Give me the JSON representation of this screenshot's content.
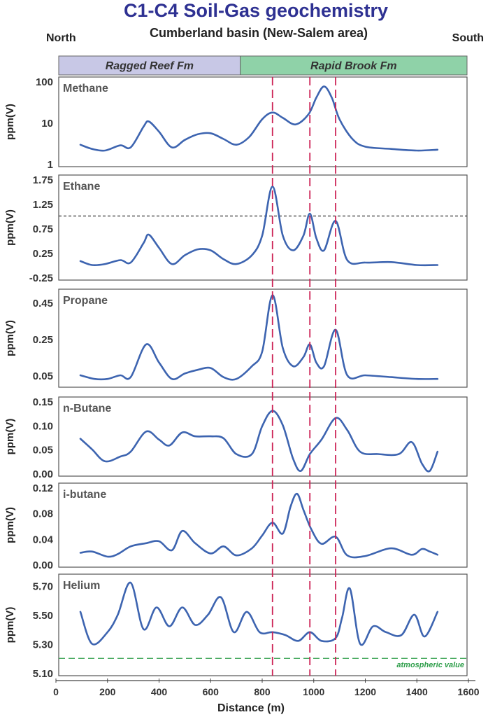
{
  "title": "C1-C4 Soil-Gas geochemistry",
  "subtitle": "Cumberland basin (New-Salem area)",
  "direction_left": "North",
  "direction_right": "South",
  "colors": {
    "title": "#2e3192",
    "line": "#3d64b0",
    "marker": "#cc2255",
    "threshold": "#333333",
    "atmospheric": "#2e9e4a",
    "ragged_reef": "#c8c8e6",
    "rapid_brook": "#8fd2a8"
  },
  "formations": [
    {
      "name": "Ragged Reef Fm",
      "x_start": 0,
      "x_end": 715,
      "color": "#c8c8e6"
    },
    {
      "name": "Rapid Brook Fm",
      "x_start": 715,
      "x_end": 1600,
      "color": "#8fd2a8"
    }
  ],
  "chart_data": {
    "type": "line",
    "xlabel": "Distance (m)",
    "xlim": [
      0,
      1600
    ],
    "xticks": [
      0,
      200,
      400,
      600,
      800,
      1000,
      1200,
      1400,
      1600
    ],
    "anomaly_markers_x": [
      840,
      985,
      1085
    ],
    "panels": [
      {
        "name": "Methane",
        "ylabel": "ppm(V)",
        "scale": "log",
        "ylim": [
          1,
          100
        ],
        "yticks": [
          1,
          10,
          100
        ],
        "ytick_labels": [
          "1",
          "10",
          "100"
        ],
        "x": [
          95,
          140,
          190,
          250,
          290,
          340,
          360,
          400,
          450,
          500,
          550,
          600,
          650,
          700,
          750,
          800,
          840,
          880,
          930,
          980,
          1010,
          1040,
          1070,
          1100,
          1150,
          1200,
          1300,
          1400,
          1480
        ],
        "values": [
          2.9,
          2.3,
          2.1,
          2.8,
          2.5,
          8.0,
          10.6,
          6.0,
          2.5,
          3.8,
          5.2,
          5.5,
          4.0,
          2.9,
          4.5,
          12.0,
          17.5,
          13.0,
          9.0,
          16.0,
          40.0,
          75.0,
          40.0,
          12.0,
          4.0,
          2.6,
          2.3,
          2.1,
          2.2
        ]
      },
      {
        "name": "Ethane",
        "ylabel": "ppm(V)",
        "scale": "linear",
        "ylim": [
          -0.25,
          1.75
        ],
        "yticks": [
          -0.25,
          0.25,
          0.75,
          1.25,
          1.75
        ],
        "ytick_labels": [
          "-0.25",
          "0.25",
          "0.75",
          "1.25",
          "1.75"
        ],
        "threshold": 1.0,
        "x": [
          95,
          140,
          190,
          250,
          290,
          340,
          360,
          400,
          450,
          500,
          550,
          600,
          650,
          700,
          760,
          800,
          840,
          880,
          920,
          960,
          985,
          1010,
          1040,
          1085,
          1130,
          1200,
          1300,
          1400,
          1480
        ],
        "values": [
          0.08,
          0.0,
          0.02,
          0.1,
          0.05,
          0.45,
          0.62,
          0.35,
          0.02,
          0.2,
          0.32,
          0.3,
          0.12,
          0.02,
          0.2,
          0.6,
          1.6,
          0.6,
          0.3,
          0.6,
          1.05,
          0.55,
          0.3,
          0.9,
          0.1,
          0.05,
          0.06,
          0.0,
          0.0
        ]
      },
      {
        "name": "Propane",
        "ylabel": "ppm(V)",
        "scale": "linear",
        "ylim": [
          0.0,
          0.5
        ],
        "yticks": [
          0.05,
          0.25,
          0.45
        ],
        "ytick_labels": [
          "0.05",
          "0.25",
          "0.45"
        ],
        "x": [
          95,
          150,
          200,
          250,
          290,
          350,
          400,
          450,
          500,
          550,
          600,
          650,
          700,
          760,
          800,
          840,
          880,
          920,
          960,
          985,
          1010,
          1040,
          1085,
          1130,
          1200,
          1300,
          1400,
          1480
        ],
        "values": [
          0.05,
          0.03,
          0.03,
          0.05,
          0.04,
          0.22,
          0.12,
          0.03,
          0.06,
          0.08,
          0.09,
          0.04,
          0.03,
          0.1,
          0.18,
          0.49,
          0.2,
          0.1,
          0.15,
          0.22,
          0.12,
          0.1,
          0.3,
          0.05,
          0.05,
          0.04,
          0.03,
          0.03
        ]
      },
      {
        "name": "n-Butane",
        "ylabel": "ppm(V)",
        "scale": "linear",
        "ylim": [
          0.0,
          0.15
        ],
        "yticks": [
          0.0,
          0.05,
          0.1,
          0.15
        ],
        "ytick_labels": [
          "0.00",
          "0.05",
          "0.10",
          "0.15"
        ],
        "x": [
          95,
          140,
          190,
          250,
          290,
          350,
          400,
          440,
          490,
          540,
          600,
          650,
          700,
          760,
          800,
          840,
          880,
          920,
          950,
          985,
          1030,
          1085,
          1130,
          1180,
          1250,
          1330,
          1380,
          1420,
          1450,
          1480
        ],
        "values": [
          0.072,
          0.05,
          0.025,
          0.035,
          0.045,
          0.087,
          0.07,
          0.058,
          0.085,
          0.077,
          0.077,
          0.073,
          0.04,
          0.04,
          0.098,
          0.13,
          0.1,
          0.03,
          0.005,
          0.04,
          0.07,
          0.115,
          0.09,
          0.045,
          0.04,
          0.04,
          0.065,
          0.02,
          0.005,
          0.045
        ]
      },
      {
        "name": "i-butane",
        "ylabel": "ppm(V)",
        "scale": "linear",
        "ylim": [
          0.0,
          0.12
        ],
        "yticks": [
          0.0,
          0.04,
          0.08,
          0.12
        ],
        "ytick_labels": [
          "0.00",
          "0.04",
          "0.08",
          "0.12"
        ],
        "x": [
          95,
          140,
          200,
          240,
          290,
          350,
          400,
          450,
          490,
          540,
          600,
          650,
          700,
          760,
          800,
          840,
          880,
          910,
          935,
          960,
          990,
          1030,
          1085,
          1130,
          1200,
          1300,
          1380,
          1420,
          1450,
          1480
        ],
        "values": [
          0.018,
          0.02,
          0.012,
          0.016,
          0.028,
          0.033,
          0.036,
          0.022,
          0.052,
          0.033,
          0.017,
          0.028,
          0.014,
          0.025,
          0.045,
          0.065,
          0.048,
          0.09,
          0.11,
          0.085,
          0.055,
          0.032,
          0.043,
          0.014,
          0.013,
          0.025,
          0.015,
          0.024,
          0.02,
          0.015
        ]
      },
      {
        "name": "Helium",
        "ylabel": "ppm(V)",
        "scale": "linear",
        "ylim": [
          5.1,
          5.75
        ],
        "yticks": [
          5.1,
          5.3,
          5.5,
          5.7
        ],
        "ytick_labels": [
          "5.10",
          "5.30",
          "5.50",
          "5.70"
        ],
        "threshold": 5.2,
        "threshold_label": "atmospheric value",
        "x": [
          95,
          140,
          200,
          240,
          290,
          340,
          390,
          440,
          490,
          540,
          590,
          640,
          690,
          740,
          790,
          840,
          890,
          940,
          985,
          1030,
          1085,
          1110,
          1140,
          1180,
          1230,
          1280,
          1340,
          1390,
          1430,
          1480
        ],
        "values": [
          5.52,
          5.3,
          5.38,
          5.5,
          5.72,
          5.4,
          5.55,
          5.42,
          5.55,
          5.43,
          5.5,
          5.62,
          5.38,
          5.52,
          5.38,
          5.38,
          5.36,
          5.32,
          5.38,
          5.32,
          5.34,
          5.48,
          5.68,
          5.3,
          5.42,
          5.38,
          5.36,
          5.5,
          5.35,
          5.52
        ]
      }
    ]
  }
}
